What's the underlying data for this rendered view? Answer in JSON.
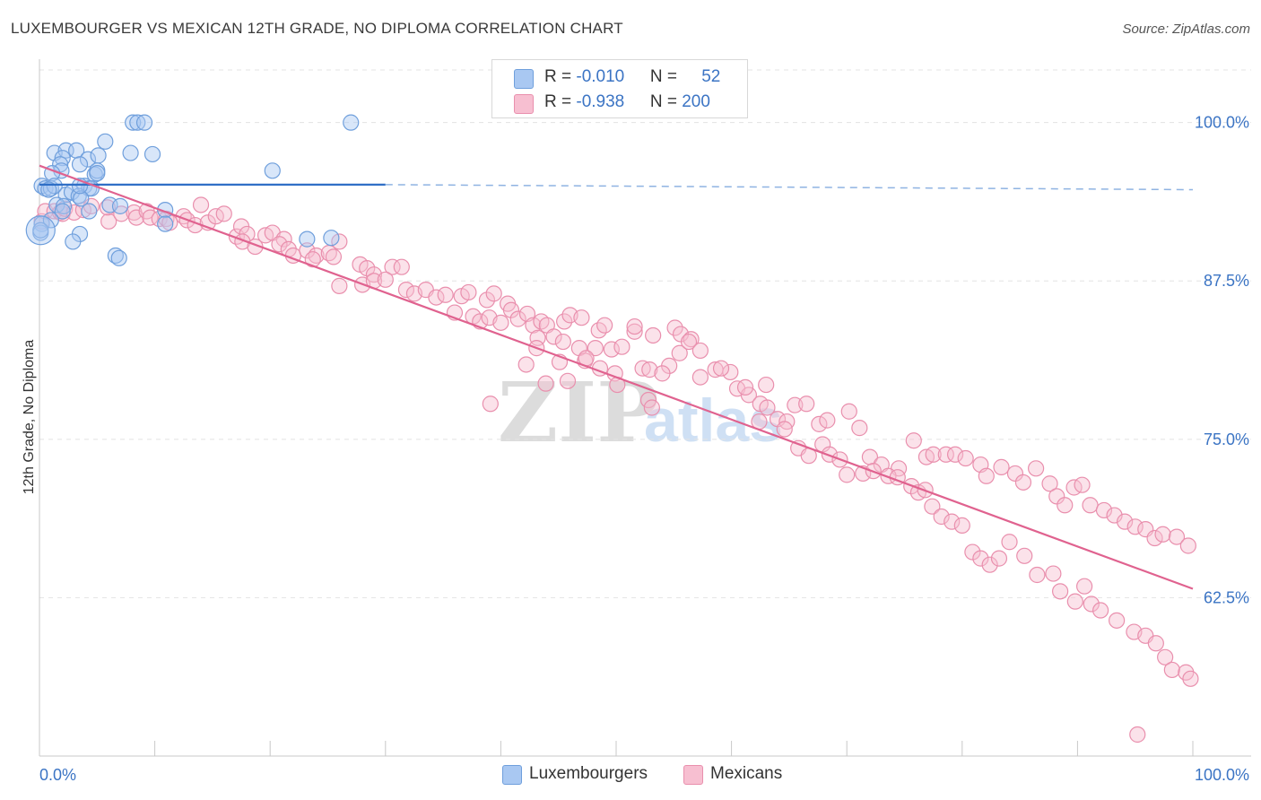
{
  "title": "LUXEMBOURGER VS MEXICAN 12TH GRADE, NO DIPLOMA CORRELATION CHART",
  "source": "Source: ZipAtlas.com",
  "watermark": {
    "zip": "ZIP",
    "atlas": "atlas"
  },
  "legend": {
    "rows": [
      {
        "r_label": "R = ",
        "r_value": "-0.010",
        "n_label": "N = ",
        "n_value": "52",
        "color": "#a9c8f2",
        "border": "#6f9fdc"
      },
      {
        "r_label": "R = ",
        "r_value": "-0.938",
        "n_label": "N = ",
        "n_value": "200",
        "color": "#f7bfd1",
        "border": "#e98fad"
      }
    ]
  },
  "bottom_legend": [
    {
      "label": "Luxembourgers",
      "color": "#a9c8f2",
      "border": "#6f9fdc"
    },
    {
      "label": "Mexicans",
      "color": "#f7bfd1",
      "border": "#e98fad"
    }
  ],
  "chart_data": {
    "type": "scatter",
    "title": "LUXEMBOURGER VS MEXICAN 12TH GRADE, NO DIPLOMA CORRELATION CHART",
    "xlabel": "",
    "ylabel": "12th Grade, No Diploma",
    "xlim": [
      0,
      100
    ],
    "ylim": [
      50,
      105
    ],
    "x_tick_labels": [
      "0.0%",
      "100.0%"
    ],
    "y_ticks": [
      62.5,
      75.0,
      87.5,
      100.0
    ],
    "y_tick_labels": [
      "62.5%",
      "75.0%",
      "87.5%",
      "100.0%"
    ],
    "grid": true,
    "legend_position": "top-center",
    "series": [
      {
        "name": "Luxembourgers",
        "color": "#6f9fdc",
        "fill": "#a9c8f2",
        "trend": {
          "x0": 0,
          "y0": 95.1,
          "x1": 30,
          "y1": 95.1,
          "dashed_to_x": 100,
          "dashed_y1": 94.7,
          "color": "#2f6fc6"
        },
        "points": [
          [
            8.1,
            100
          ],
          [
            8.5,
            100
          ],
          [
            9.1,
            100
          ],
          [
            27,
            100
          ],
          [
            5.7,
            98.5
          ],
          [
            1.3,
            97.6
          ],
          [
            2.3,
            97.8
          ],
          [
            3.2,
            97.8
          ],
          [
            2.0,
            97.2
          ],
          [
            4.2,
            97.1
          ],
          [
            5.1,
            97.4
          ],
          [
            7.9,
            97.6
          ],
          [
            9.8,
            97.5
          ],
          [
            1.8,
            96.7
          ],
          [
            3.5,
            96.7
          ],
          [
            1.9,
            96.2
          ],
          [
            1.1,
            96.0
          ],
          [
            4.8,
            95.9
          ],
          [
            5.0,
            96.2
          ],
          [
            5.0,
            96.0
          ],
          [
            20.2,
            96.2
          ],
          [
            0.2,
            95.0
          ],
          [
            0.5,
            94.8
          ],
          [
            1.0,
            94.8
          ],
          [
            1.3,
            95.0
          ],
          [
            3.9,
            95.0
          ],
          [
            4.3,
            94.8
          ],
          [
            0.8,
            94.7
          ],
          [
            2.3,
            94.3
          ],
          [
            2.8,
            94.5
          ],
          [
            3.4,
            94.2
          ],
          [
            4.5,
            94.8
          ],
          [
            3.6,
            94.0
          ],
          [
            3.5,
            95.0
          ],
          [
            1.5,
            93.5
          ],
          [
            2.1,
            93.4
          ],
          [
            2.0,
            93.0
          ],
          [
            4.3,
            93.0
          ],
          [
            6.1,
            93.5
          ],
          [
            7.0,
            93.4
          ],
          [
            10.9,
            93.1
          ],
          [
            0.2,
            92.0
          ],
          [
            1.0,
            92.3
          ],
          [
            10.9,
            92.0
          ],
          [
            3.5,
            91.2
          ],
          [
            0.1,
            91.3
          ],
          [
            2.9,
            90.6
          ],
          [
            23.2,
            90.8
          ],
          [
            25.3,
            90.9
          ],
          [
            6.6,
            89.5
          ],
          [
            6.9,
            89.3
          ],
          [
            0.1,
            91.5
          ]
        ]
      },
      {
        "name": "Mexicans",
        "color": "#e98fad",
        "fill": "#f7bfd1",
        "trend": {
          "x0": 0,
          "y0": 96.6,
          "x1": 100,
          "y1": 63.2,
          "color": "#e0628f"
        },
        "points": [
          [
            0.2,
            92.2
          ],
          [
            0.5,
            93.0
          ],
          [
            1.3,
            93.0
          ],
          [
            1.8,
            92.9
          ],
          [
            2.0,
            92.8
          ],
          [
            2.2,
            93.2
          ],
          [
            3.0,
            92.9
          ],
          [
            3.8,
            93.1
          ],
          [
            4.5,
            93.4
          ],
          [
            6.0,
            92.2
          ],
          [
            5.9,
            93.3
          ],
          [
            7.1,
            92.8
          ],
          [
            8.2,
            92.9
          ],
          [
            8.4,
            92.5
          ],
          [
            9.3,
            93.0
          ],
          [
            9.6,
            92.5
          ],
          [
            10.4,
            92.4
          ],
          [
            11.0,
            92.4
          ],
          [
            11.3,
            92.1
          ],
          [
            12.5,
            92.6
          ],
          [
            12.8,
            92.3
          ],
          [
            13.5,
            91.9
          ],
          [
            14.0,
            93.5
          ],
          [
            14.6,
            92.1
          ],
          [
            15.3,
            92.6
          ],
          [
            16.0,
            92.8
          ],
          [
            17.1,
            91.0
          ],
          [
            17.5,
            91.8
          ],
          [
            18.0,
            91.2
          ],
          [
            17.6,
            90.6
          ],
          [
            18.7,
            90.2
          ],
          [
            19.6,
            91.1
          ],
          [
            20.2,
            91.3
          ],
          [
            21.2,
            90.8
          ],
          [
            20.8,
            90.4
          ],
          [
            21.6,
            90.0
          ],
          [
            22.0,
            89.5
          ],
          [
            23.2,
            89.9
          ],
          [
            24.0,
            89.5
          ],
          [
            23.7,
            89.2
          ],
          [
            25.1,
            89.7
          ],
          [
            25.5,
            89.4
          ],
          [
            26.0,
            90.6
          ],
          [
            27.8,
            88.8
          ],
          [
            28.4,
            88.5
          ],
          [
            29.0,
            88.0
          ],
          [
            30.6,
            88.6
          ],
          [
            31.4,
            88.6
          ],
          [
            28.0,
            87.2
          ],
          [
            26.0,
            87.1
          ],
          [
            29.0,
            87.5
          ],
          [
            30.0,
            87.6
          ],
          [
            31.8,
            86.8
          ],
          [
            32.5,
            86.5
          ],
          [
            33.5,
            86.8
          ],
          [
            34.4,
            86.2
          ],
          [
            35.2,
            86.4
          ],
          [
            36.6,
            86.3
          ],
          [
            37.2,
            86.6
          ],
          [
            38.8,
            86.0
          ],
          [
            39.4,
            86.5
          ],
          [
            40.6,
            85.7
          ],
          [
            40.9,
            85.2
          ],
          [
            36.0,
            85.0
          ],
          [
            37.6,
            84.7
          ],
          [
            38.2,
            84.3
          ],
          [
            39.0,
            84.6
          ],
          [
            40.0,
            84.2
          ],
          [
            41.5,
            84.5
          ],
          [
            42.3,
            84.9
          ],
          [
            42.8,
            84.0
          ],
          [
            43.5,
            84.3
          ],
          [
            44.0,
            84.0
          ],
          [
            45.5,
            84.3
          ],
          [
            46.0,
            84.8
          ],
          [
            47.0,
            84.6
          ],
          [
            48.5,
            83.6
          ],
          [
            49.0,
            84.0
          ],
          [
            51.6,
            83.5
          ],
          [
            51.6,
            83.9
          ],
          [
            53.2,
            83.2
          ],
          [
            55.1,
            83.8
          ],
          [
            55.6,
            83.3
          ],
          [
            56.5,
            82.9
          ],
          [
            43.2,
            83.0
          ],
          [
            44.6,
            83.1
          ],
          [
            45.4,
            82.7
          ],
          [
            46.8,
            82.2
          ],
          [
            48.2,
            82.2
          ],
          [
            49.6,
            82.1
          ],
          [
            50.5,
            82.3
          ],
          [
            47.3,
            81.2
          ],
          [
            48.6,
            80.6
          ],
          [
            49.9,
            80.2
          ],
          [
            52.3,
            80.6
          ],
          [
            52.9,
            80.5
          ],
          [
            54.6,
            80.8
          ],
          [
            55.5,
            81.8
          ],
          [
            56.3,
            82.7
          ],
          [
            57.3,
            82.0
          ],
          [
            58.6,
            80.5
          ],
          [
            59.9,
            80.3
          ],
          [
            60.5,
            79.0
          ],
          [
            61.5,
            78.5
          ],
          [
            62.5,
            77.8
          ],
          [
            63.1,
            77.5
          ],
          [
            64.0,
            76.6
          ],
          [
            64.8,
            76.4
          ],
          [
            65.5,
            77.7
          ],
          [
            66.5,
            77.8
          ],
          [
            67.6,
            76.2
          ],
          [
            68.3,
            76.5
          ],
          [
            70.2,
            77.2
          ],
          [
            71.1,
            75.9
          ],
          [
            72.0,
            73.6
          ],
          [
            73.0,
            73.0
          ],
          [
            74.5,
            72.7
          ],
          [
            75.8,
            74.9
          ],
          [
            76.9,
            73.6
          ],
          [
            77.5,
            73.8
          ],
          [
            78.6,
            73.8
          ],
          [
            79.4,
            73.8
          ],
          [
            80.3,
            73.5
          ],
          [
            81.6,
            73.0
          ],
          [
            82.1,
            72.1
          ],
          [
            83.4,
            72.8
          ],
          [
            84.6,
            72.3
          ],
          [
            85.3,
            71.6
          ],
          [
            86.4,
            72.7
          ],
          [
            87.6,
            71.5
          ],
          [
            88.2,
            70.5
          ],
          [
            88.9,
            69.8
          ],
          [
            89.7,
            71.2
          ],
          [
            90.4,
            71.4
          ],
          [
            91.1,
            69.8
          ],
          [
            92.3,
            69.4
          ],
          [
            93.2,
            69.0
          ],
          [
            94.1,
            68.5
          ],
          [
            95.0,
            68.1
          ],
          [
            95.9,
            67.9
          ],
          [
            96.7,
            67.2
          ],
          [
            97.4,
            67.5
          ],
          [
            98.6,
            67.3
          ],
          [
            99.6,
            66.6
          ],
          [
            39.1,
            77.8
          ],
          [
            42.2,
            80.9
          ],
          [
            43.9,
            79.4
          ],
          [
            45.1,
            81.1
          ],
          [
            47.4,
            81.4
          ],
          [
            50.1,
            79.3
          ],
          [
            52.8,
            78.1
          ],
          [
            53.1,
            77.5
          ],
          [
            54.0,
            80.2
          ],
          [
            57.3,
            79.9
          ],
          [
            59.1,
            80.6
          ],
          [
            61.2,
            79.1
          ],
          [
            62.4,
            76.4
          ],
          [
            63.0,
            79.3
          ],
          [
            64.6,
            75.8
          ],
          [
            65.8,
            74.3
          ],
          [
            66.7,
            73.7
          ],
          [
            67.9,
            74.6
          ],
          [
            68.5,
            73.8
          ],
          [
            69.4,
            73.4
          ],
          [
            70.0,
            72.2
          ],
          [
            71.4,
            72.3
          ],
          [
            72.3,
            72.5
          ],
          [
            73.6,
            72.1
          ],
          [
            74.4,
            72.0
          ],
          [
            75.6,
            71.3
          ],
          [
            76.2,
            70.8
          ],
          [
            76.8,
            71.0
          ],
          [
            77.4,
            69.7
          ],
          [
            78.2,
            68.9
          ],
          [
            79.1,
            68.5
          ],
          [
            80.0,
            68.2
          ],
          [
            80.9,
            66.1
          ],
          [
            81.6,
            65.6
          ],
          [
            82.4,
            65.1
          ],
          [
            83.2,
            65.6
          ],
          [
            84.1,
            66.9
          ],
          [
            85.4,
            65.8
          ],
          [
            86.5,
            64.3
          ],
          [
            87.9,
            64.4
          ],
          [
            88.5,
            63.0
          ],
          [
            89.8,
            62.2
          ],
          [
            90.6,
            63.4
          ],
          [
            91.2,
            62.0
          ],
          [
            92.0,
            61.5
          ],
          [
            93.4,
            60.7
          ],
          [
            94.9,
            59.8
          ],
          [
            95.9,
            59.5
          ],
          [
            96.8,
            58.9
          ],
          [
            97.6,
            57.8
          ],
          [
            98.2,
            56.8
          ],
          [
            99.4,
            56.6
          ],
          [
            95.2,
            51.7
          ],
          [
            99.8,
            56.1
          ],
          [
            43.1,
            82.2
          ],
          [
            45.8,
            79.6
          ]
        ]
      }
    ]
  }
}
